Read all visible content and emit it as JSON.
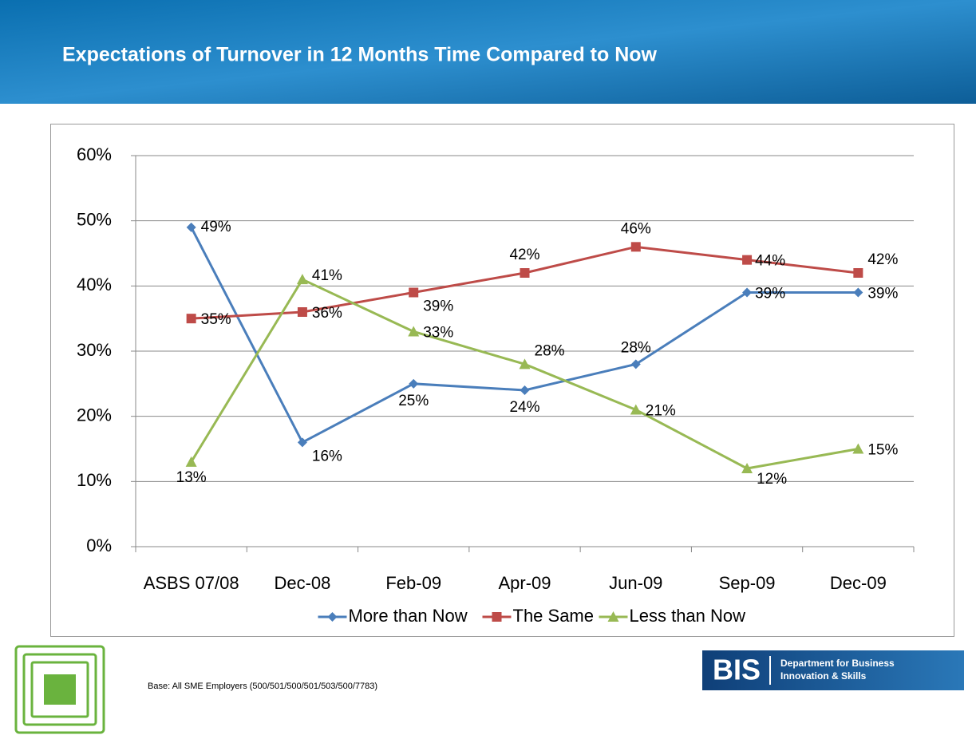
{
  "chart_data": {
    "type": "line",
    "title": "Expectations of Turnover in 12 Months Time Compared to Now",
    "categories": [
      "ASBS 07/08",
      "Dec-08",
      "Feb-09",
      "Apr-09",
      "Jun-09",
      "Sep-09",
      "Dec-09"
    ],
    "series": [
      {
        "name": "More than Now",
        "color": "#4a7ebb",
        "marker": "diamond",
        "values": [
          49,
          16,
          25,
          24,
          28,
          39,
          39
        ],
        "value_labels": [
          "49%",
          "16%",
          "25%",
          "24%",
          "28%",
          "39%",
          "39%"
        ]
      },
      {
        "name": "The Same",
        "color": "#be4b48",
        "marker": "square",
        "values": [
          35,
          36,
          39,
          42,
          46,
          44,
          42
        ],
        "value_labels": [
          "35%",
          "36%",
          "39%",
          "42%",
          "46%",
          "44%",
          "42%"
        ]
      },
      {
        "name": "Less than Now",
        "color": "#98b954",
        "marker": "triangle",
        "values": [
          13,
          41,
          33,
          28,
          21,
          12,
          15
        ],
        "value_labels": [
          "13%",
          "41%",
          "33%",
          "28%",
          "21%",
          "12%",
          "15%"
        ]
      }
    ],
    "ylim": [
      0,
      60
    ],
    "yticks": [
      {
        "value": 0,
        "label": "0%"
      },
      {
        "value": 10,
        "label": "10%"
      },
      {
        "value": 20,
        "label": "20%"
      },
      {
        "value": 30,
        "label": "30%"
      },
      {
        "value": 40,
        "label": "40%"
      },
      {
        "value": 50,
        "label": "50%"
      },
      {
        "value": 60,
        "label": "60%"
      }
    ],
    "grid": true,
    "legend": "bottom"
  },
  "footer": {
    "base_note": "Base: All SME Employers (500/501/500/501/503/500/7783)",
    "logo_abbr": "BIS",
    "logo_line1": "Department for Business",
    "logo_line2": "Innovation & Skills"
  }
}
